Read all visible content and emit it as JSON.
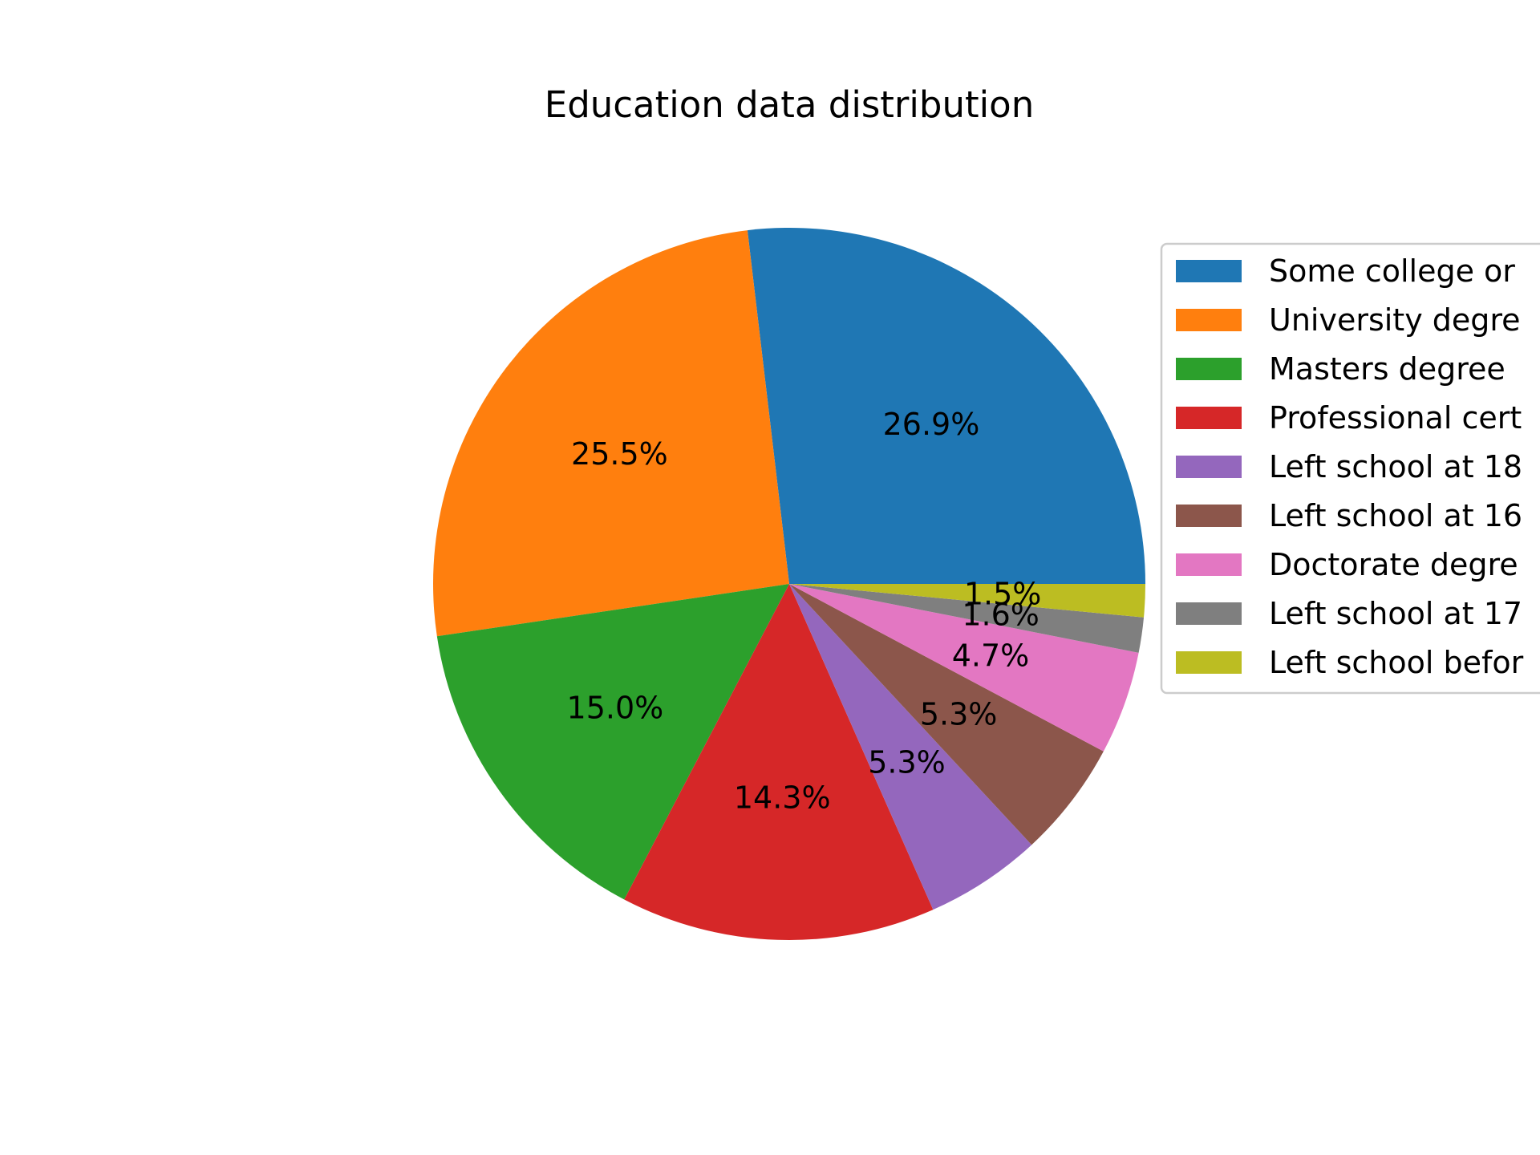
{
  "chart_data": {
    "type": "pie",
    "title": "Education data distribution",
    "categories": [
      "Some college or",
      "University degre",
      "Masters degree",
      "Professional cert",
      "Left school at 18",
      "Left school at 16",
      "Doctorate degre",
      "Left school at 17",
      "Left school befor"
    ],
    "values": [
      26.9,
      25.5,
      15.0,
      14.3,
      5.3,
      5.3,
      4.7,
      1.6,
      1.5
    ],
    "labels": [
      "26.9%",
      "25.5%",
      "15.0%",
      "14.3%",
      "5.3%",
      "5.3%",
      "4.7%",
      "1.6%",
      "1.5%"
    ],
    "colors": [
      "#1f77b4",
      "#ff7f0e",
      "#2ca02c",
      "#d62728",
      "#9467bd",
      "#8c564b",
      "#e377c2",
      "#7f7f7f",
      "#bcbd22"
    ],
    "start_angle_deg": 0,
    "direction": "counterclockwise",
    "legend_position": "right"
  }
}
